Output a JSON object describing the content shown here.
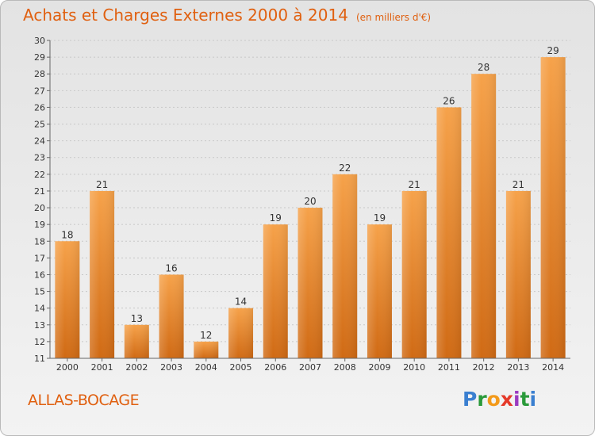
{
  "header": {
    "title": "Achats et Charges Externes 2000 à 2014",
    "subtitle": "(en milliers d'€)"
  },
  "footer": {
    "commune": "ALLAS-BOCAGE",
    "logo_text": "Proxiti"
  },
  "colors": {
    "title": "#e06010",
    "bar_light": "#f6a24a",
    "bar_dark": "#d06a14"
  },
  "chart_data": {
    "type": "bar",
    "title": "Achats et Charges Externes 2000 à 2014",
    "subtitle": "(en milliers d'€)",
    "categories": [
      "2000",
      "2001",
      "2002",
      "2003",
      "2004",
      "2005",
      "2006",
      "2007",
      "2008",
      "2009",
      "2010",
      "2011",
      "2012",
      "2013",
      "2014"
    ],
    "values": [
      18,
      21,
      13,
      16,
      12,
      14,
      19,
      20,
      22,
      19,
      21,
      26,
      28,
      21,
      29
    ],
    "ylim": [
      11,
      30
    ],
    "yticks": [
      11,
      12,
      13,
      14,
      15,
      16,
      17,
      18,
      19,
      20,
      21,
      22,
      23,
      24,
      25,
      26,
      27,
      28,
      29,
      30
    ],
    "grid": true,
    "legend": "none"
  }
}
